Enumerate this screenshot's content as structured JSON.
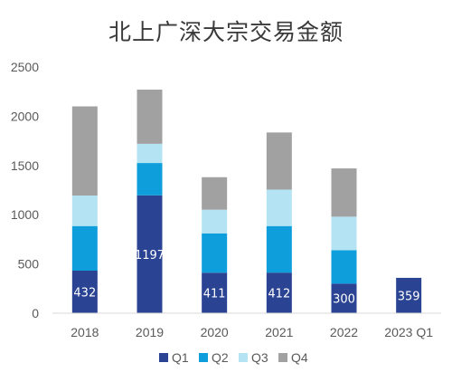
{
  "chart_data": {
    "type": "bar",
    "stacked": true,
    "title": "北上广深大宗交易金额",
    "xlabel": "",
    "ylabel": "",
    "categories": [
      "2018",
      "2019",
      "2020",
      "2021",
      "2022",
      "2023 Q1"
    ],
    "ylim": [
      0,
      2500
    ],
    "yticks": [
      0,
      500,
      1000,
      1500,
      2000,
      2500
    ],
    "grid": false,
    "legend_position": "bottom",
    "series": [
      {
        "name": "Q1",
        "color": "#2a4393",
        "values": [
          432,
          1197,
          411,
          412,
          300,
          359
        ]
      },
      {
        "name": "Q2",
        "color": "#0e9edb",
        "values": [
          453,
          328,
          400,
          473,
          340,
          null
        ]
      },
      {
        "name": "Q3",
        "color": "#b4e3f4",
        "values": [
          310,
          195,
          240,
          370,
          340,
          null
        ]
      },
      {
        "name": "Q4",
        "color": "#a1a1a1",
        "values": [
          905,
          550,
          330,
          580,
          490,
          null
        ]
      }
    ],
    "data_labels": {
      "series": "Q1",
      "texts": [
        "432",
        "1197",
        "411",
        "412",
        "300",
        "359"
      ]
    }
  }
}
